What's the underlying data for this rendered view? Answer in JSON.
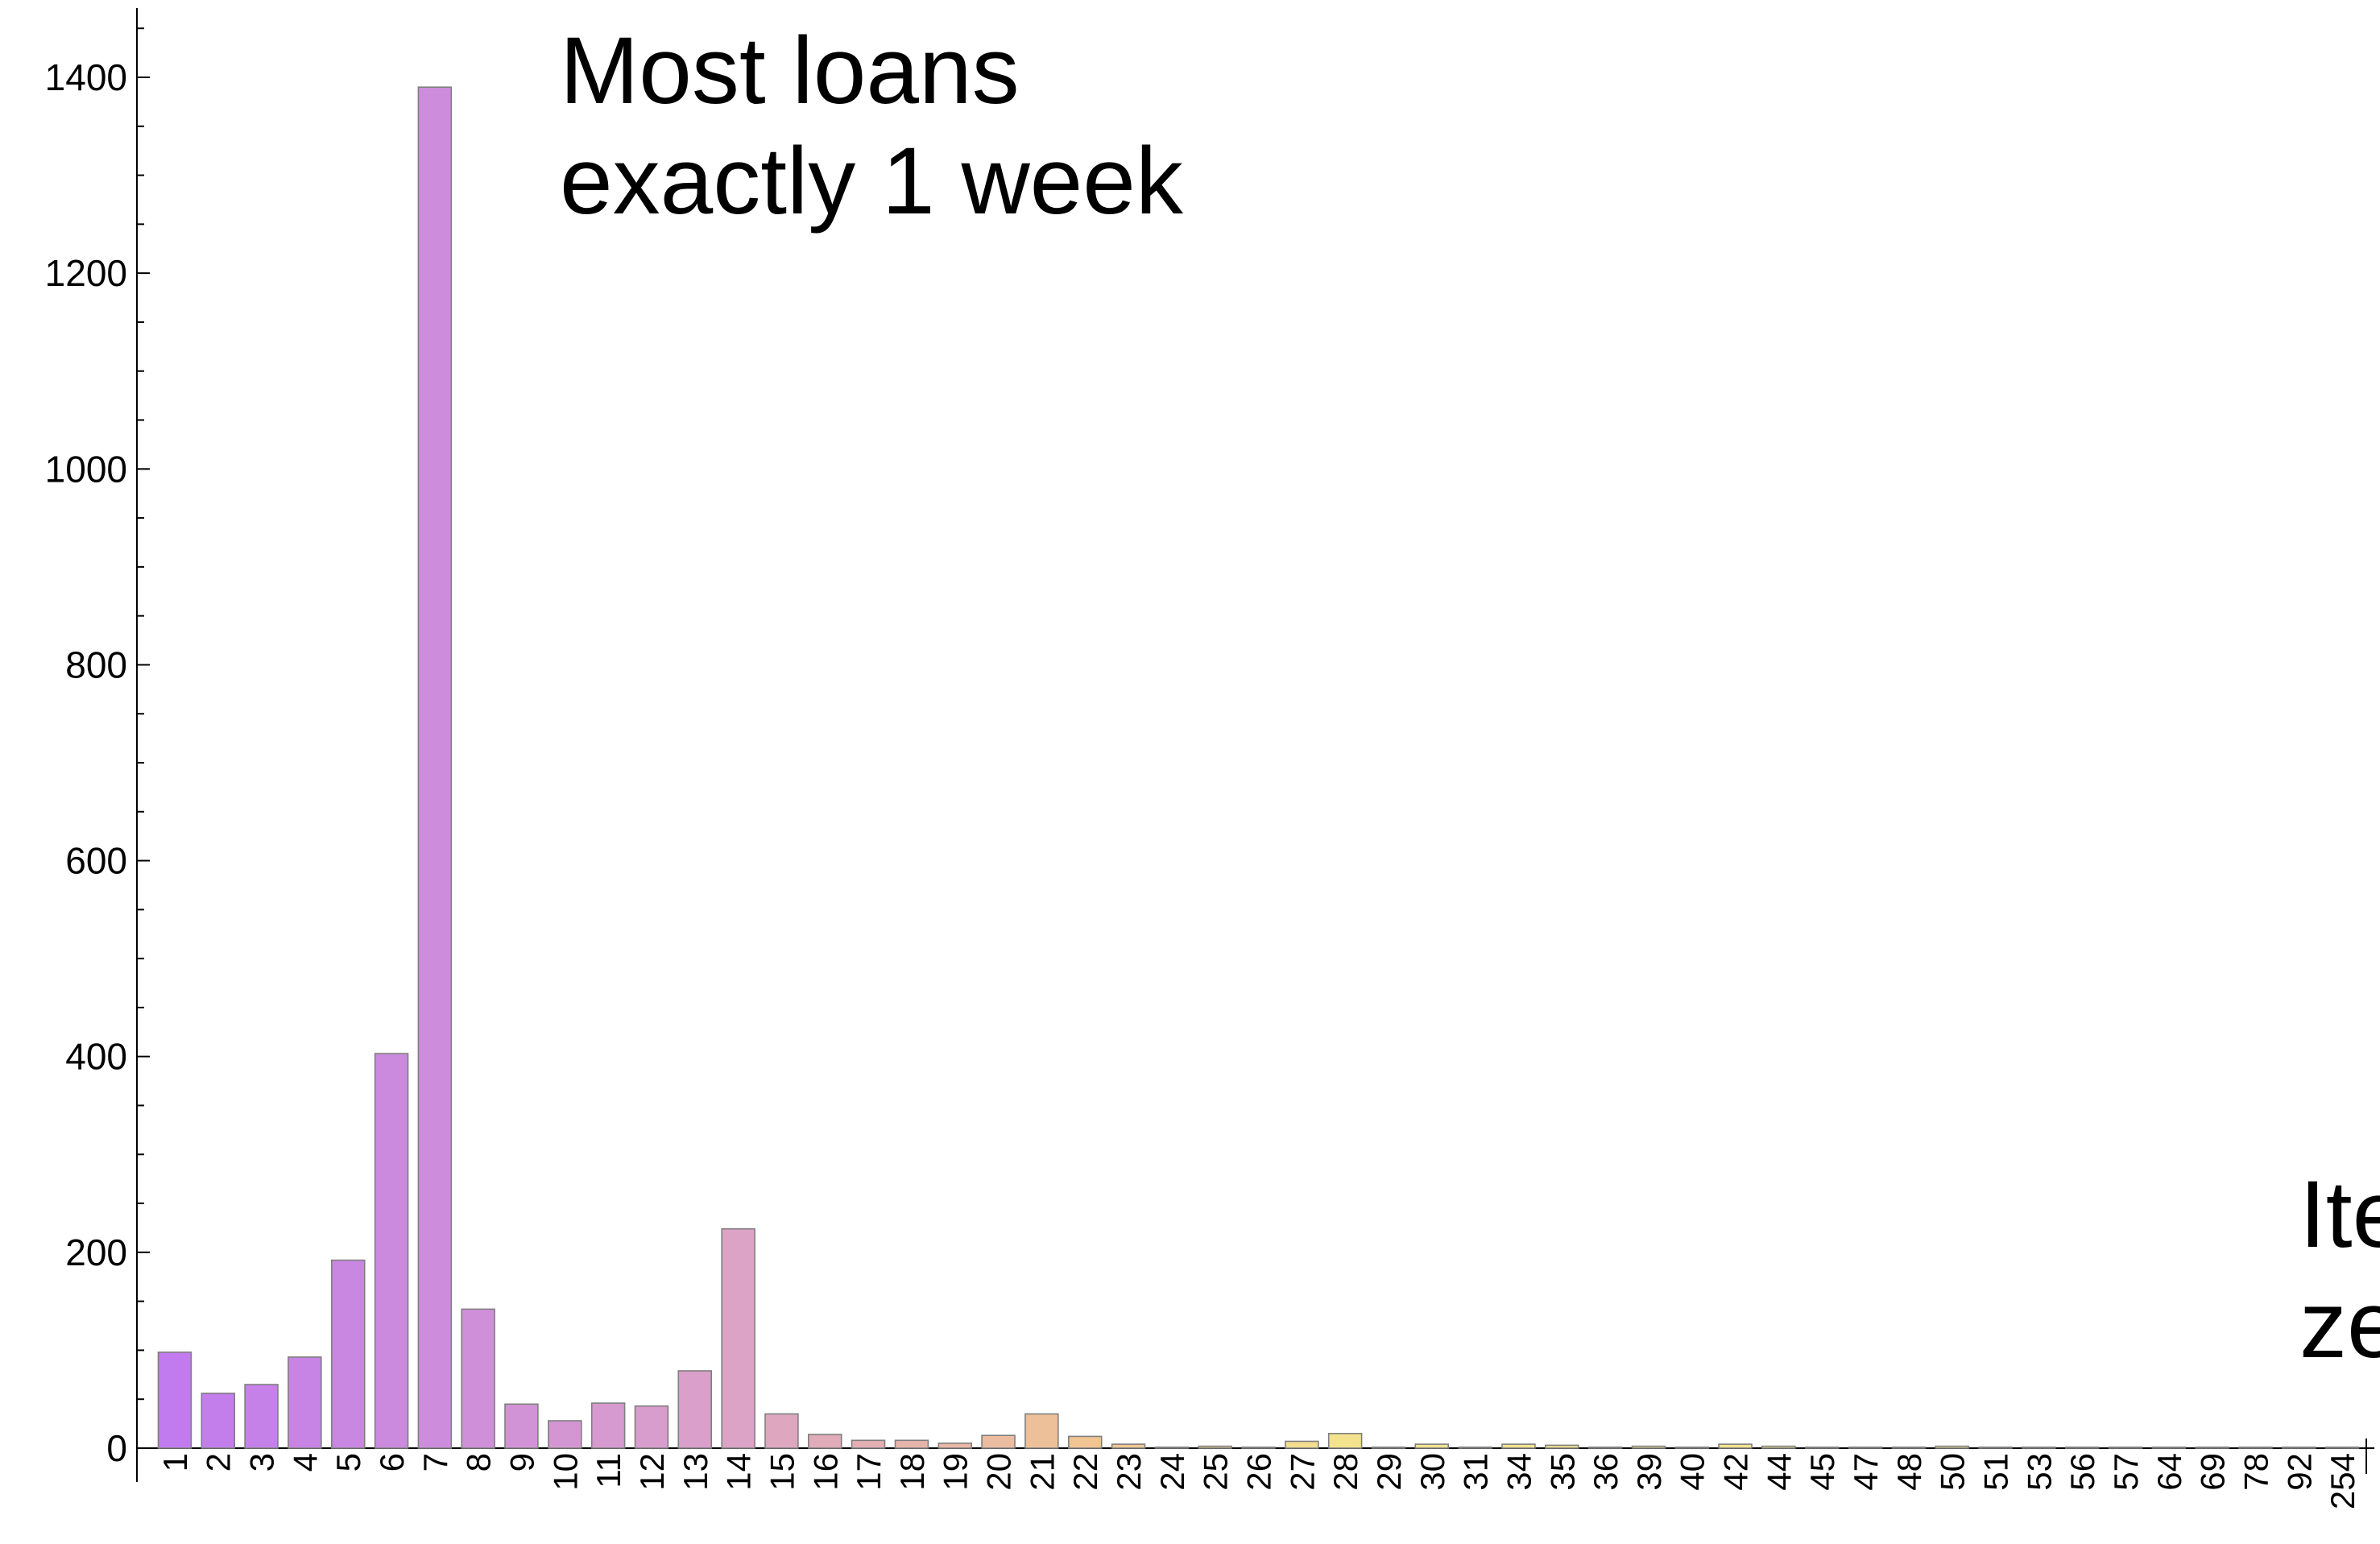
{
  "chart_data": {
    "type": "bar",
    "title": "",
    "xlabel": "",
    "ylabel": "",
    "ylim": [
      0,
      1400
    ],
    "yticks": [
      0,
      200,
      400,
      600,
      800,
      1000,
      1200,
      1400
    ],
    "categories": [
      "1",
      "2",
      "3",
      "4",
      "5",
      "6",
      "7",
      "8",
      "9",
      "10",
      "11",
      "12",
      "13",
      "14",
      "15",
      "16",
      "17",
      "18",
      "19",
      "20",
      "21",
      "22",
      "23",
      "24",
      "25",
      "26",
      "27",
      "28",
      "29",
      "30",
      "31",
      "34",
      "35",
      "36",
      "39",
      "40",
      "42",
      "44",
      "45",
      "47",
      "48",
      "50",
      "51",
      "53",
      "56",
      "57",
      "64",
      "69",
      "78",
      "92",
      "254"
    ],
    "values": [
      98,
      56,
      65,
      93,
      192,
      403,
      1390,
      142,
      45,
      28,
      46,
      43,
      79,
      224,
      35,
      14,
      8,
      8,
      5,
      13,
      35,
      12,
      4,
      1,
      2,
      1,
      7,
      15,
      1,
      4,
      1,
      4,
      3,
      1,
      2,
      1,
      4,
      2,
      1,
      1,
      1,
      2,
      1,
      1,
      1,
      1,
      1,
      1,
      1,
      1,
      1
    ],
    "colors": {
      "bar_start": "#c27bee",
      "bar_mid": "#dba1c9",
      "bar_peach": "#f1c493",
      "bar_end": "#f3e48e",
      "bar_stroke": "#7f7f7f",
      "axis": "#000000"
    },
    "grid": false,
    "annotations": [
      {
        "lines": [
          "Most loans",
          "exactly 1 week"
        ]
      },
      {
        "lines": [
          "Ite",
          "ze"
        ]
      }
    ]
  }
}
